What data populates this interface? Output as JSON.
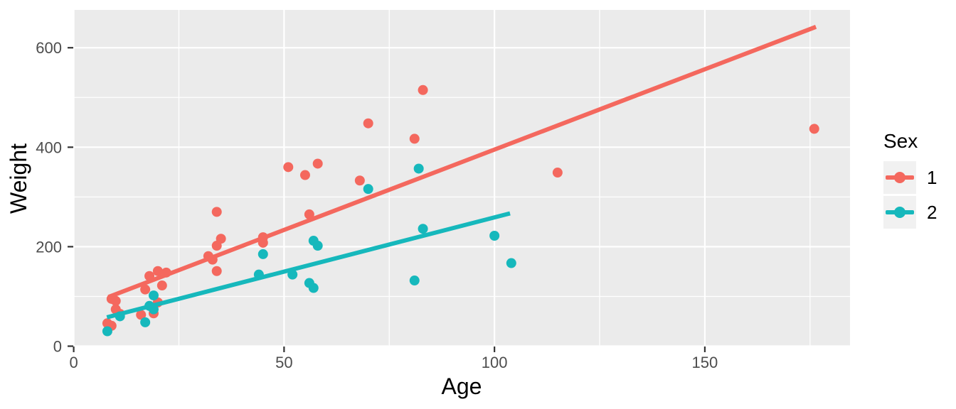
{
  "chart_data": {
    "type": "scatter",
    "title": "",
    "xlabel": "Age",
    "ylabel": "Weight",
    "xlim": [
      -0.1,
      184.5
    ],
    "ylim": [
      -0.7,
      676
    ],
    "x_ticks": [
      0,
      50,
      100,
      150
    ],
    "x_minor_ticks": [
      25,
      75,
      125,
      175
    ],
    "y_ticks": [
      0,
      200,
      400,
      600
    ],
    "y_minor_ticks": [
      100,
      300,
      500
    ],
    "grid": true,
    "panel_bg": "#EBEBEB",
    "grid_color": "#FFFFFF",
    "tick_label_color": "#4D4D4D",
    "tick_mark_color": "#333333",
    "legend": {
      "title": "Sex",
      "position": "right",
      "entries": [
        {
          "label": "1",
          "color": "#F4685E"
        },
        {
          "label": "2",
          "color": "#16B8BC"
        }
      ]
    },
    "series": [
      {
        "name": "1",
        "color": "#F4685E",
        "points": [
          [
            8,
            46
          ],
          [
            9,
            41
          ],
          [
            9,
            95
          ],
          [
            10,
            91
          ],
          [
            10,
            74
          ],
          [
            11,
            65
          ],
          [
            16,
            63
          ],
          [
            17,
            114
          ],
          [
            18,
            141
          ],
          [
            19,
            66
          ],
          [
            20,
            88
          ],
          [
            20,
            151
          ],
          [
            21,
            122
          ],
          [
            22,
            148
          ],
          [
            32,
            181
          ],
          [
            33,
            174
          ],
          [
            34,
            151
          ],
          [
            34,
            202
          ],
          [
            34,
            270
          ],
          [
            35,
            216
          ],
          [
            45,
            208
          ],
          [
            45,
            219
          ],
          [
            51,
            360
          ],
          [
            55,
            344
          ],
          [
            56,
            265
          ],
          [
            58,
            367
          ],
          [
            68,
            333
          ],
          [
            70,
            448
          ],
          [
            81,
            417
          ],
          [
            83,
            515
          ],
          [
            115,
            349
          ],
          [
            176,
            437
          ]
        ],
        "trend_line": {
          "x1": 8.3,
          "y1": 99,
          "x2": 176.4,
          "y2": 642
        }
      },
      {
        "name": "2",
        "color": "#16B8BC",
        "points": [
          [
            8,
            30
          ],
          [
            11,
            60
          ],
          [
            17,
            48
          ],
          [
            18,
            81
          ],
          [
            19,
            74
          ],
          [
            19,
            102
          ],
          [
            44,
            144
          ],
          [
            45,
            185
          ],
          [
            52,
            144
          ],
          [
            56,
            127
          ],
          [
            57,
            117
          ],
          [
            57,
            212
          ],
          [
            58,
            202
          ],
          [
            70,
            316
          ],
          [
            81,
            132
          ],
          [
            82,
            357
          ],
          [
            83,
            236
          ],
          [
            100,
            222
          ],
          [
            104,
            167
          ]
        ],
        "trend_line": {
          "x1": 7.9,
          "y1": 58,
          "x2": 103.7,
          "y2": 267
        }
      }
    ]
  }
}
